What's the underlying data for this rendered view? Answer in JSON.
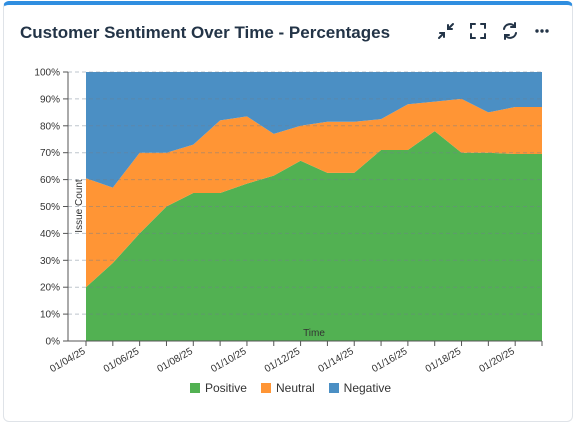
{
  "widget": {
    "title": "Customer Sentiment Over Time - Percentages",
    "icons": [
      "collapse-icon",
      "fullscreen-icon",
      "refresh-icon",
      "more-icon"
    ]
  },
  "chart_data": {
    "type": "area",
    "stacked": true,
    "normalized": true,
    "x": [
      "01/04/25",
      "01/05/25",
      "01/06/25",
      "01/07/25",
      "01/08/25",
      "01/09/25",
      "01/10/25",
      "01/11/25",
      "01/12/25",
      "01/13/25",
      "01/14/25",
      "01/15/25",
      "01/16/25",
      "01/17/25",
      "01/18/25",
      "01/19/25",
      "01/20/25",
      "01/21/25"
    ],
    "x_tick_labels": [
      "01/04/25",
      "01/06/25",
      "01/08/25",
      "01/10/25",
      "01/12/25",
      "01/14/25",
      "01/16/25",
      "01/18/25",
      "01/20/25"
    ],
    "xlabel": "Time",
    "ylabel": "Issue Count",
    "ylim": [
      0,
      100
    ],
    "y_tick_labels": [
      "0%",
      "10%",
      "20%",
      "30%",
      "40%",
      "50%",
      "60%",
      "70%",
      "80%",
      "90%",
      "100%"
    ],
    "grid": true,
    "legend_position": "bottom",
    "series": [
      {
        "name": "Positive",
        "color": "#52b152",
        "values": [
          20,
          29,
          40,
          50,
          55,
          55,
          58.5,
          61.5,
          67,
          62.5,
          62.5,
          71,
          71,
          78,
          70,
          70,
          69.5,
          69.5
        ]
      },
      {
        "name": "Neutral",
        "color": "#ff9535",
        "values": [
          40.5,
          28,
          30,
          20,
          18,
          27,
          25,
          15.5,
          13,
          19,
          19,
          11.5,
          17,
          11,
          20,
          15,
          17.5,
          17.5
        ]
      },
      {
        "name": "Negative",
        "color": "#4b8fc4",
        "values": [
          39.5,
          43,
          30,
          30,
          27,
          18,
          16.5,
          23,
          20,
          18.5,
          18.5,
          17.5,
          12,
          11,
          10,
          15,
          13,
          13
        ]
      }
    ]
  }
}
